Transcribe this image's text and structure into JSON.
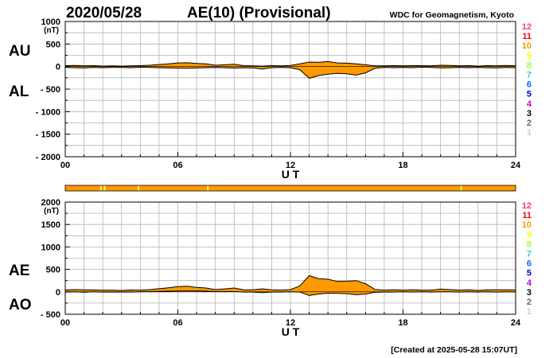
{
  "header": {
    "date": "2020/05/28",
    "title": "AE(10) (Provisional)",
    "source": "WDC for Geomagnetism, Kyoto"
  },
  "footer": {
    "created": "[Created at 2025-05-28 15:07UT]"
  },
  "colors": {
    "fill": "#ff9900",
    "line": "#000000",
    "grid": "#b4b4b4",
    "coverage_bar": "#ff9900",
    "coverage_gap": "#ffff66"
  },
  "stations": [
    {
      "label": "12",
      "color": "#ff3399"
    },
    {
      "label": "11",
      "color": "#ff0000"
    },
    {
      "label": "10",
      "color": "#ff9900"
    },
    {
      "label": "9",
      "color": "#ffff00"
    },
    {
      "label": "8",
      "color": "#99ff33"
    },
    {
      "label": "7",
      "color": "#33cccc"
    },
    {
      "label": "6",
      "color": "#0066ff"
    },
    {
      "label": "5",
      "color": "#0000cc"
    },
    {
      "label": "4",
      "color": "#cc00cc"
    },
    {
      "label": "3",
      "color": "#000000"
    },
    {
      "label": "2",
      "color": "#666666"
    },
    {
      "label": "1",
      "color": "#cccccc"
    }
  ],
  "coverage": {
    "gap_hours": [
      1.9,
      2.1,
      3.9,
      7.6,
      21.1
    ]
  },
  "chart_data": [
    {
      "type": "area",
      "name": "AU/AL",
      "xlabel": "U T",
      "unit": "(nT)",
      "xlim": [
        0,
        24
      ],
      "xticks": [
        "00",
        "06",
        "12",
        "18",
        "24"
      ],
      "ylim": [
        -2000,
        1000
      ],
      "yticks": [
        "1000",
        "500",
        "0",
        "- 500",
        "- 1000",
        "- 1500",
        "- 2000"
      ],
      "series_labels": {
        "upper": "AU",
        "lower": "AL"
      },
      "x": [
        0,
        0.5,
        1,
        1.5,
        2,
        2.5,
        3,
        3.5,
        4,
        4.5,
        5,
        5.5,
        6,
        6.5,
        7,
        7.5,
        8,
        8.5,
        9,
        9.5,
        10,
        10.5,
        11,
        11.5,
        12,
        12.5,
        13,
        13.5,
        14,
        14.5,
        15,
        15.5,
        16,
        16.5,
        17,
        17.5,
        18,
        18.5,
        19,
        19.5,
        20,
        20.5,
        21,
        21.5,
        22,
        22.5,
        23,
        23.5,
        24
      ],
      "upper": [
        20,
        25,
        15,
        20,
        10,
        15,
        10,
        15,
        20,
        30,
        45,
        60,
        80,
        85,
        70,
        60,
        30,
        40,
        50,
        20,
        15,
        10,
        20,
        15,
        25,
        60,
        100,
        95,
        110,
        80,
        75,
        60,
        40,
        15,
        15,
        20,
        15,
        20,
        20,
        15,
        30,
        25,
        15,
        20,
        10,
        20,
        15,
        25,
        15
      ],
      "lower": [
        -20,
        -25,
        -30,
        -20,
        -25,
        -20,
        -20,
        -25,
        -15,
        -20,
        -25,
        -30,
        -35,
        -40,
        -30,
        -25,
        -20,
        -25,
        -35,
        -25,
        -30,
        -55,
        -25,
        -20,
        -25,
        -70,
        -260,
        -200,
        -170,
        -150,
        -160,
        -190,
        -140,
        -40,
        -20,
        -25,
        -20,
        -25,
        -15,
        -20,
        -30,
        -25,
        -20,
        -25,
        -20,
        -25,
        -30,
        -20,
        -25
      ]
    },
    {
      "type": "area",
      "name": "AE/AO",
      "xlabel": "U T",
      "unit": "(nT)",
      "xlim": [
        0,
        24
      ],
      "xticks": [
        "00",
        "06",
        "12",
        "18",
        "24"
      ],
      "ylim": [
        -500,
        2000
      ],
      "yticks": [
        "2000",
        "1500",
        "1000",
        "500",
        "0",
        "- 500"
      ],
      "series_labels": {
        "upper": "AE",
        "lower": "AO"
      },
      "x": [
        0,
        0.5,
        1,
        1.5,
        2,
        2.5,
        3,
        3.5,
        4,
        4.5,
        5,
        5.5,
        6,
        6.5,
        7,
        7.5,
        8,
        8.5,
        9,
        9.5,
        10,
        10.5,
        11,
        11.5,
        12,
        12.5,
        13,
        13.5,
        14,
        14.5,
        15,
        15.5,
        16,
        16.5,
        17,
        17.5,
        18,
        18.5,
        19,
        19.5,
        20,
        20.5,
        21,
        21.5,
        22,
        22.5,
        23,
        23.5,
        24
      ],
      "upper": [
        40,
        50,
        45,
        40,
        35,
        35,
        30,
        40,
        35,
        50,
        70,
        90,
        115,
        125,
        100,
        85,
        50,
        65,
        85,
        45,
        45,
        65,
        45,
        35,
        50,
        130,
        360,
        295,
        280,
        230,
        235,
        250,
        180,
        55,
        35,
        45,
        35,
        45,
        35,
        35,
        60,
        50,
        35,
        45,
        30,
        45,
        45,
        45,
        40
      ],
      "lower": [
        -5,
        0,
        -10,
        0,
        -5,
        -5,
        -5,
        -5,
        0,
        5,
        10,
        15,
        20,
        20,
        20,
        15,
        5,
        5,
        5,
        -5,
        -5,
        -20,
        -5,
        -5,
        0,
        -5,
        -80,
        -50,
        -30,
        -35,
        -40,
        -65,
        -50,
        -10,
        -5,
        -5,
        0,
        -5,
        0,
        -5,
        0,
        0,
        -5,
        0,
        -5,
        0,
        -5,
        0,
        -5
      ]
    }
  ]
}
